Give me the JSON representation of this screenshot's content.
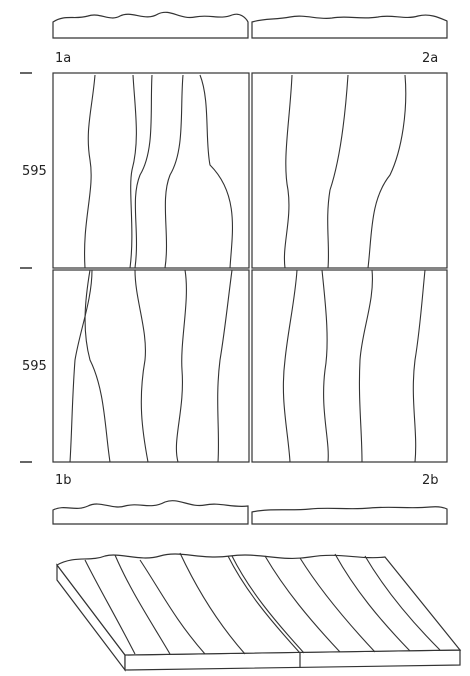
{
  "panels": {
    "top_left": {
      "label": "1a"
    },
    "top_right": {
      "label": "2a"
    },
    "bottom_left": {
      "label": "1b"
    },
    "bottom_right": {
      "label": "2b"
    }
  },
  "scale": {
    "upper": "595",
    "lower": "595"
  }
}
